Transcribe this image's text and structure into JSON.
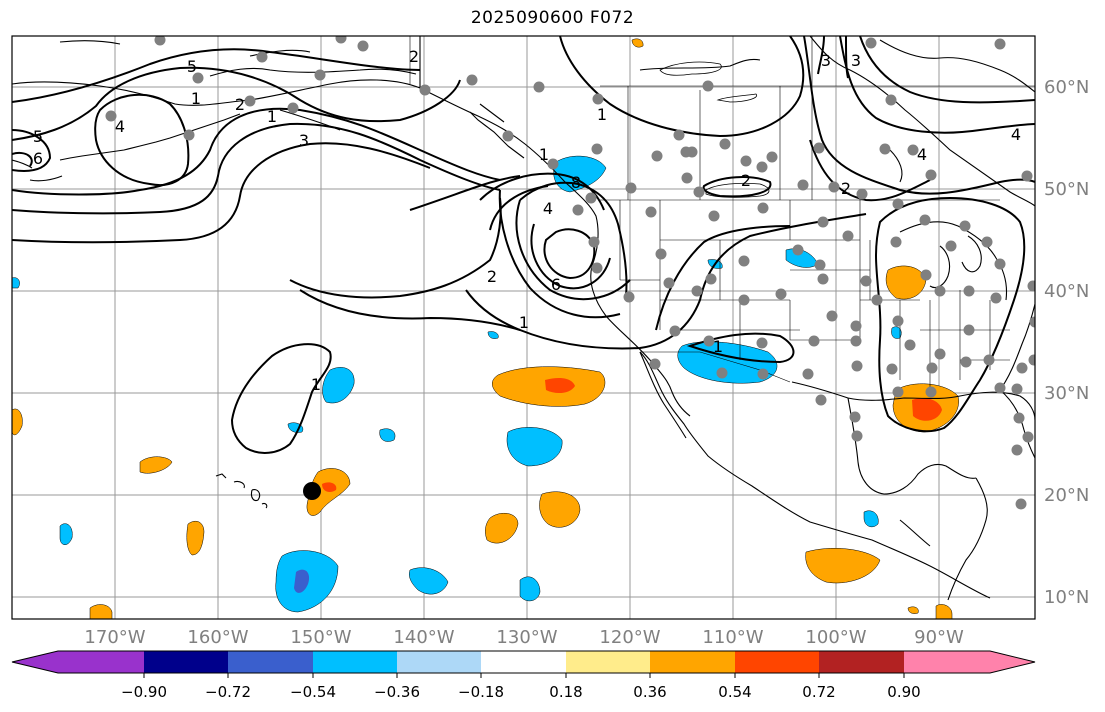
{
  "title": "2025090600 F072",
  "map": {
    "lon_labels": [
      "170°W",
      "160°W",
      "150°W",
      "140°W",
      "130°W",
      "120°W",
      "110°W",
      "100°W",
      "90°W"
    ],
    "lat_labels": [
      "60°N",
      "50°N",
      "40°N",
      "30°N",
      "20°N",
      "10°N"
    ],
    "lon_values": [
      -170,
      -160,
      -150,
      -140,
      -130,
      -120,
      -110,
      -100,
      -90
    ],
    "lat_values": [
      60,
      50,
      40,
      30,
      20,
      10
    ],
    "contour_labels": [
      "5",
      "5",
      "6",
      "4",
      "3",
      "2",
      "1",
      "1",
      "2",
      "4",
      "8",
      "6",
      "2",
      "1",
      "4",
      "2",
      "1",
      "1",
      "3",
      "3",
      "2",
      "1",
      "4",
      "1"
    ],
    "colors": {
      "c_neg090": "#9932cc",
      "c_neg072": "#00008b",
      "c_neg054": "#3a5fcd",
      "c_neg036": "#00bfff",
      "c_neg018": "#add8f7",
      "c_zero": "#ffffff",
      "c_pos018": "#ffec8b",
      "c_pos036": "#ffa500",
      "c_pos054": "#ff4500",
      "c_pos072": "#b22222",
      "c_pos090": "#ff82ab"
    }
  },
  "colorbar": {
    "tick_labels": [
      "−0.90",
      "−0.72",
      "−0.54",
      "−0.36",
      "−0.18",
      "0.18",
      "0.36",
      "0.54",
      "0.72",
      "0.90"
    ]
  }
}
